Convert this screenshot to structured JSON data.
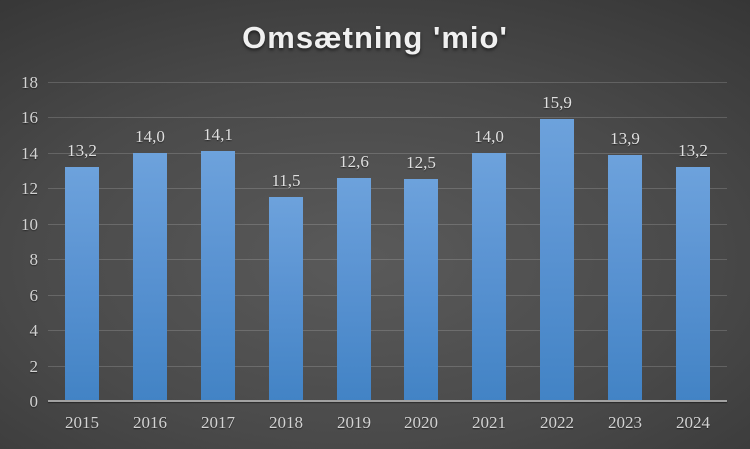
{
  "chart_data": {
    "type": "bar",
    "title": "Omsætning 'mio'",
    "categories": [
      "2015",
      "2016",
      "2017",
      "2018",
      "2019",
      "2020",
      "2021",
      "2022",
      "2023",
      "2024"
    ],
    "values": [
      13.2,
      14.0,
      14.1,
      11.5,
      12.6,
      12.5,
      14.0,
      15.9,
      13.9,
      13.2
    ],
    "value_labels": [
      "13,2",
      "14,0",
      "14,1",
      "11,5",
      "12,6",
      "12,5",
      "14,0",
      "15,9",
      "13,9",
      "13,2"
    ],
    "xlabel": "",
    "ylabel": "",
    "ylim": [
      0,
      18
    ],
    "yticks": [
      0,
      2,
      4,
      6,
      8,
      10,
      12,
      14,
      16,
      18
    ],
    "grid": true,
    "legend_position": "none"
  },
  "colors": {
    "background_center": "#5a5a5a",
    "background_edge": "#262626",
    "bar_top": "#6da2dc",
    "bar_bottom": "#4283c5",
    "gridline": "rgba(255,255,255,0.16)",
    "axis_line": "#a2a2a2",
    "tick_text": "#d3d3d3",
    "title_text": "#f0f0f0"
  }
}
